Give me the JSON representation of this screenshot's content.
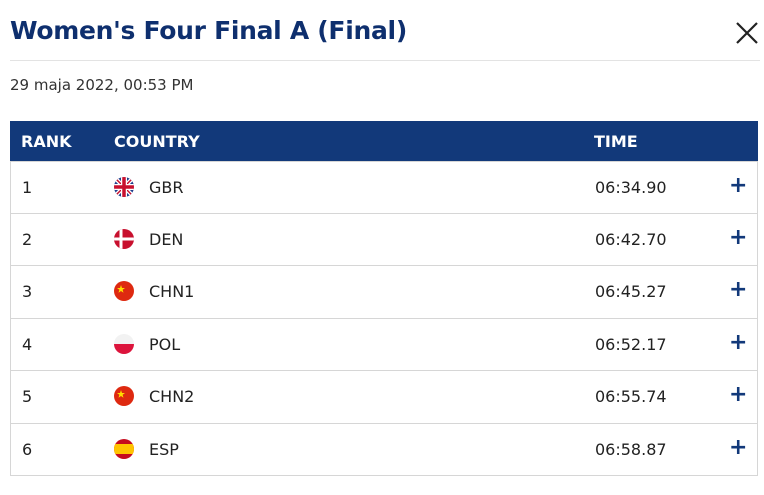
{
  "header": {
    "title": "Women's Four Final A (Final)",
    "date": "29 maja 2022, 00:53 PM"
  },
  "table": {
    "columns": [
      "RANK",
      "COUNTRY",
      "TIME"
    ],
    "rows": [
      [
        1,
        "GBR",
        "06:34.90"
      ],
      [
        2,
        "DEN",
        "06:42.70"
      ],
      [
        3,
        "CHN1",
        "06:45.27"
      ],
      [
        4,
        "POL",
        "06:52.17"
      ],
      [
        5,
        "CHN2",
        "06:55.74"
      ],
      [
        6,
        "ESP",
        "06:58.87"
      ]
    ]
  }
}
